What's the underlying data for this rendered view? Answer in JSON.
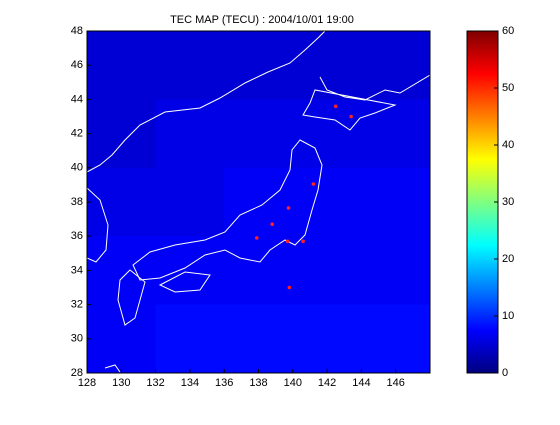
{
  "chart_data": {
    "type": "map",
    "title": "TEC MAP (TECU) : 2004/10/01 19:00",
    "xlim": [
      128,
      148
    ],
    "xticks": [
      128,
      130,
      132,
      134,
      136,
      138,
      140,
      142,
      144,
      146
    ],
    "ylim": [
      28,
      48
    ],
    "yticks": [
      28,
      30,
      32,
      34,
      36,
      38,
      40,
      42,
      44,
      46,
      48
    ],
    "grid_lat": [
      48,
      44,
      40,
      36,
      32
    ],
    "grid_lon": [
      128,
      132,
      136,
      140,
      144
    ],
    "z": [
      [
        5,
        5,
        5,
        5,
        5
      ],
      [
        5,
        6,
        6,
        6,
        6
      ],
      [
        6,
        6,
        7,
        7,
        7
      ],
      [
        7,
        7,
        7,
        7,
        7
      ],
      [
        7,
        8,
        8,
        8,
        8
      ]
    ],
    "clim": [
      0,
      60
    ],
    "cticks": [
      0,
      10,
      20,
      30,
      40,
      50,
      60
    ],
    "points": {
      "color": "#ff2020",
      "x": [
        142.5,
        143.4,
        141.2,
        139.75,
        138.8,
        137.9,
        139.7,
        139.8,
        140.6
      ],
      "y": [
        43.6,
        43.0,
        39.05,
        37.65,
        36.7,
        35.9,
        35.7,
        33.0,
        35.7
      ]
    }
  }
}
